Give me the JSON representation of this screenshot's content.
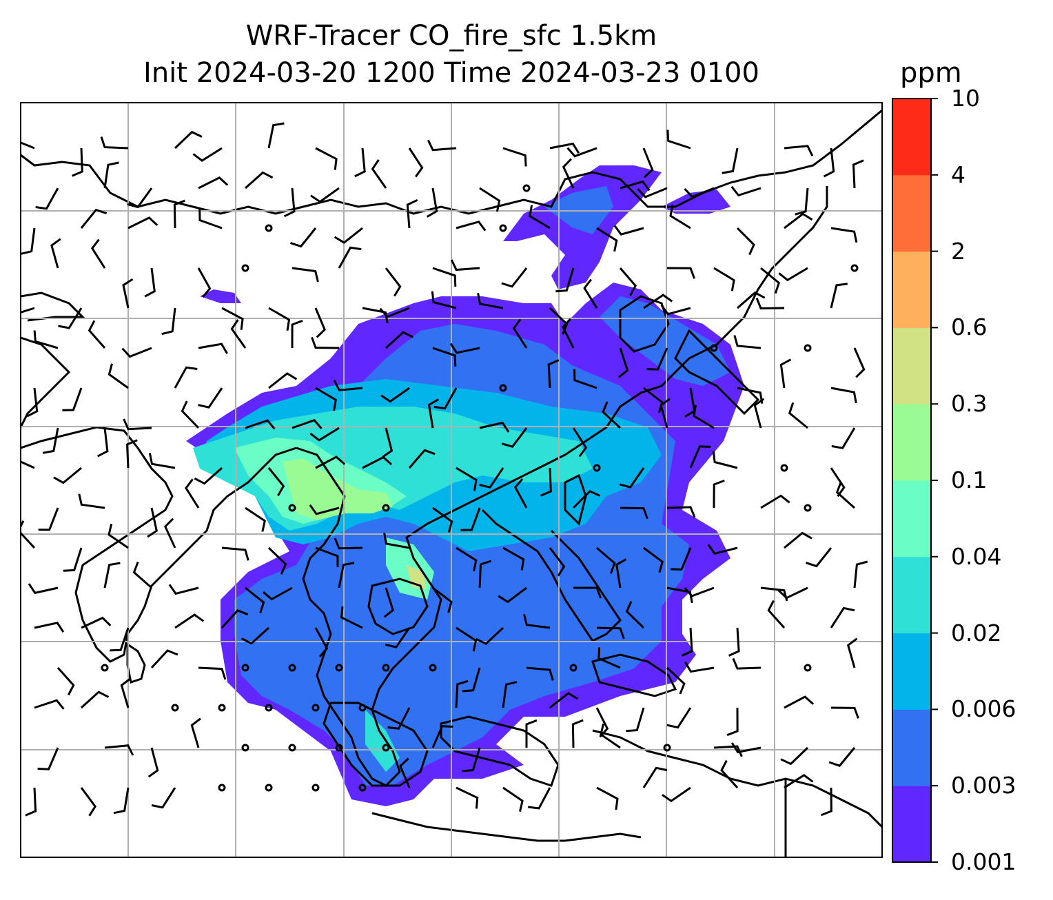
{
  "title_line1": "WRF-Tracer CO_fire_sfc 1.5km",
  "title_line2": "Init 2024-03-20 1200 Time 2024-03-23 0100",
  "colorbar": {
    "unit": "ppm",
    "ticks": [
      "0.001",
      "0.003",
      "0.006",
      "0.02",
      "0.04",
      "0.1",
      "0.3",
      "0.6",
      "2",
      "4",
      "10"
    ],
    "colors": [
      "#6028ff",
      "#3272f2",
      "#03b4ea",
      "#2ee0d6",
      "#6afdc5",
      "#9afa94",
      "#d0e283",
      "#ffb05c",
      "#ff6e38",
      "#ff2b19"
    ]
  },
  "map": {
    "plume_colors": {
      "level1": "#6028ff",
      "level2": "#3272f2",
      "level3": "#03b4ea",
      "level4": "#2ee0d6",
      "level5": "#6afdc5",
      "level6": "#9afa94",
      "level7": "#d0e283"
    },
    "grid_color": "#b0b0b0",
    "coastline_color": "#000000",
    "barb_color": "#000000"
  }
}
